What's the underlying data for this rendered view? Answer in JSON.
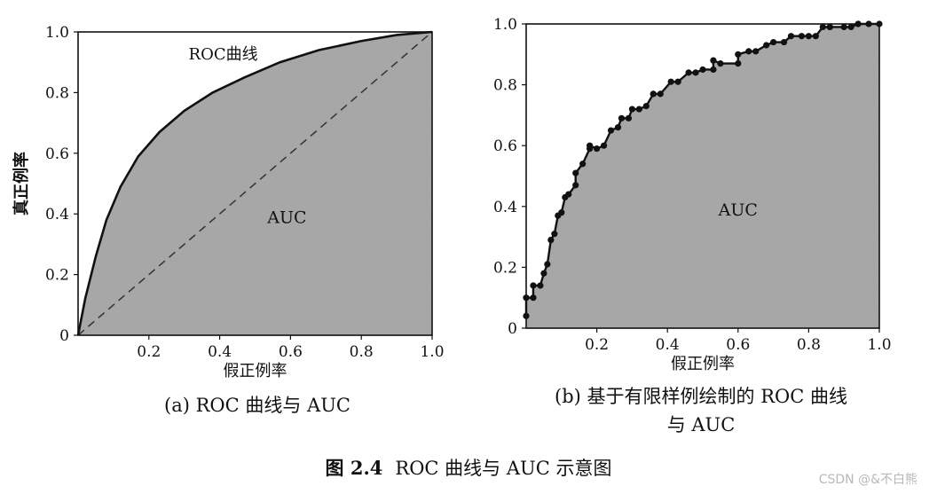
{
  "chart_data": [
    {
      "type": "area",
      "panel": "a",
      "xlabel": "假正例率",
      "ylabel": "真正例率",
      "xlim": [
        0,
        1
      ],
      "ylim": [
        0,
        1
      ],
      "xticks": [
        "0.2",
        "0.4",
        "0.6",
        "0.8",
        "1.0"
      ],
      "yticks": [
        "0",
        "0.2",
        "0.4",
        "0.6",
        "0.8",
        "1.0"
      ],
      "curve_label": "ROC曲线",
      "area_label": "AUC",
      "x": [
        0,
        0.02,
        0.05,
        0.08,
        0.12,
        0.17,
        0.23,
        0.3,
        0.38,
        0.47,
        0.57,
        0.68,
        0.8,
        0.9,
        1.0
      ],
      "y": [
        0,
        0.12,
        0.26,
        0.38,
        0.49,
        0.59,
        0.67,
        0.74,
        0.8,
        0.85,
        0.9,
        0.94,
        0.97,
        0.99,
        1.0
      ],
      "diagonal": true,
      "fill_color": "#a6a6a6",
      "line_color": "#111111"
    },
    {
      "type": "area",
      "panel": "b",
      "xlabel": "假正例率",
      "ylabel": "真正例率",
      "xlim": [
        0,
        1
      ],
      "ylim": [
        0,
        1
      ],
      "xticks": [
        "0.2",
        "0.4",
        "0.6",
        "0.8",
        "1.0"
      ],
      "yticks": [
        "0",
        "0.2",
        "0.4",
        "0.6",
        "0.8",
        "1.0"
      ],
      "area_label": "AUC",
      "x": [
        0,
        0,
        0.02,
        0.02,
        0.04,
        0.05,
        0.06,
        0.07,
        0.08,
        0.09,
        0.1,
        0.11,
        0.12,
        0.14,
        0.14,
        0.16,
        0.18,
        0.18,
        0.2,
        0.22,
        0.24,
        0.26,
        0.27,
        0.29,
        0.3,
        0.32,
        0.34,
        0.36,
        0.36,
        0.38,
        0.41,
        0.43,
        0.46,
        0.48,
        0.5,
        0.53,
        0.53,
        0.55,
        0.6,
        0.6,
        0.63,
        0.65,
        0.68,
        0.7,
        0.73,
        0.75,
        0.78,
        0.8,
        0.82,
        0.84,
        0.86,
        0.86,
        0.9,
        0.92,
        0.94,
        0.94,
        0.97,
        1.0
      ],
      "y": [
        0.04,
        0.1,
        0.1,
        0.14,
        0.14,
        0.18,
        0.21,
        0.29,
        0.31,
        0.37,
        0.38,
        0.43,
        0.44,
        0.47,
        0.51,
        0.54,
        0.59,
        0.6,
        0.59,
        0.6,
        0.65,
        0.66,
        0.69,
        0.69,
        0.72,
        0.72,
        0.73,
        0.77,
        0.77,
        0.77,
        0.81,
        0.81,
        0.84,
        0.84,
        0.85,
        0.85,
        0.88,
        0.87,
        0.87,
        0.9,
        0.91,
        0.91,
        0.93,
        0.94,
        0.94,
        0.96,
        0.96,
        0.96,
        0.96,
        0.99,
        0.99,
        0.99,
        0.99,
        0.99,
        1.0,
        1.0,
        1.0,
        1.0
      ],
      "fill_color": "#a6a6a6",
      "line_color": "#111111"
    }
  ],
  "captions": {
    "a": "(a) ROC 曲线与 AUC",
    "b_line1": "(b) 基于有限样例绘制的 ROC 曲线",
    "b_line2": "与 AUC",
    "figure_label": "图 2.4",
    "figure_title": "ROC 曲线与 AUC 示意图"
  },
  "watermark": "CSDN @&不白熊"
}
